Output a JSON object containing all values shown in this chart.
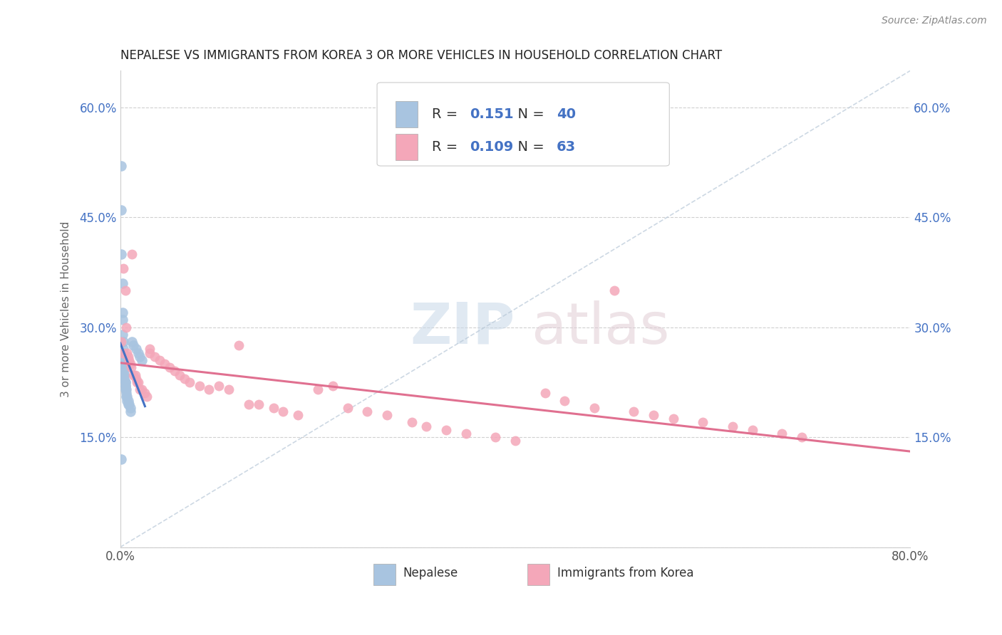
{
  "title": "NEPALESE VS IMMIGRANTS FROM KOREA 3 OR MORE VEHICLES IN HOUSEHOLD CORRELATION CHART",
  "source_text": "Source: ZipAtlas.com",
  "ylabel": "3 or more Vehicles in Household",
  "xmin": 0.0,
  "xmax": 0.8,
  "ymin": 0.0,
  "ymax": 0.65,
  "y_ticks": [
    0.0,
    0.15,
    0.3,
    0.45,
    0.6
  ],
  "y_tick_labels": [
    "",
    "15.0%",
    "30.0%",
    "45.0%",
    "60.0%"
  ],
  "r_nepalese": 0.151,
  "n_nepalese": 40,
  "r_korea": 0.109,
  "n_korea": 63,
  "color_nepalese": "#a8c4e0",
  "color_korea": "#f4a7b9",
  "line_color_nepalese": "#4472c4",
  "line_color_korea": "#e07090",
  "legend_labels": [
    "Nepalese",
    "Immigrants from Korea"
  ],
  "background_color": "#ffffff",
  "nepalese_x": [
    0.001,
    0.001,
    0.001,
    0.002,
    0.002,
    0.002,
    0.002,
    0.003,
    0.003,
    0.003,
    0.003,
    0.003,
    0.003,
    0.004,
    0.004,
    0.004,
    0.004,
    0.004,
    0.005,
    0.005,
    0.005,
    0.005,
    0.005,
    0.006,
    0.006,
    0.006,
    0.007,
    0.007,
    0.008,
    0.008,
    0.009,
    0.01,
    0.01,
    0.012,
    0.013,
    0.016,
    0.018,
    0.02,
    0.022,
    0.001
  ],
  "nepalese_y": [
    0.52,
    0.46,
    0.4,
    0.36,
    0.32,
    0.31,
    0.29,
    0.28,
    0.27,
    0.265,
    0.26,
    0.255,
    0.25,
    0.245,
    0.24,
    0.235,
    0.235,
    0.23,
    0.225,
    0.225,
    0.22,
    0.22,
    0.215,
    0.215,
    0.21,
    0.205,
    0.205,
    0.2,
    0.2,
    0.195,
    0.195,
    0.19,
    0.185,
    0.28,
    0.275,
    0.27,
    0.265,
    0.26,
    0.255,
    0.12
  ],
  "korea_x": [
    0.001,
    0.002,
    0.003,
    0.005,
    0.006,
    0.007,
    0.008,
    0.009,
    0.01,
    0.011,
    0.012,
    0.013,
    0.015,
    0.016,
    0.017,
    0.018,
    0.02,
    0.022,
    0.025,
    0.027,
    0.03,
    0.03,
    0.035,
    0.04,
    0.045,
    0.05,
    0.055,
    0.06,
    0.065,
    0.07,
    0.08,
    0.09,
    0.1,
    0.11,
    0.12,
    0.13,
    0.14,
    0.155,
    0.165,
    0.18,
    0.2,
    0.215,
    0.23,
    0.25,
    0.27,
    0.295,
    0.31,
    0.33,
    0.35,
    0.38,
    0.4,
    0.43,
    0.45,
    0.48,
    0.5,
    0.52,
    0.54,
    0.56,
    0.59,
    0.62,
    0.64,
    0.67,
    0.69
  ],
  "korea_y": [
    0.28,
    0.265,
    0.38,
    0.35,
    0.3,
    0.265,
    0.26,
    0.255,
    0.25,
    0.245,
    0.4,
    0.235,
    0.235,
    0.23,
    0.225,
    0.225,
    0.215,
    0.215,
    0.21,
    0.205,
    0.27,
    0.265,
    0.26,
    0.255,
    0.25,
    0.245,
    0.24,
    0.235,
    0.23,
    0.225,
    0.22,
    0.215,
    0.22,
    0.215,
    0.275,
    0.195,
    0.195,
    0.19,
    0.185,
    0.18,
    0.215,
    0.22,
    0.19,
    0.185,
    0.18,
    0.17,
    0.165,
    0.16,
    0.155,
    0.15,
    0.145,
    0.21,
    0.2,
    0.19,
    0.35,
    0.185,
    0.18,
    0.175,
    0.17,
    0.165,
    0.16,
    0.155,
    0.15
  ]
}
